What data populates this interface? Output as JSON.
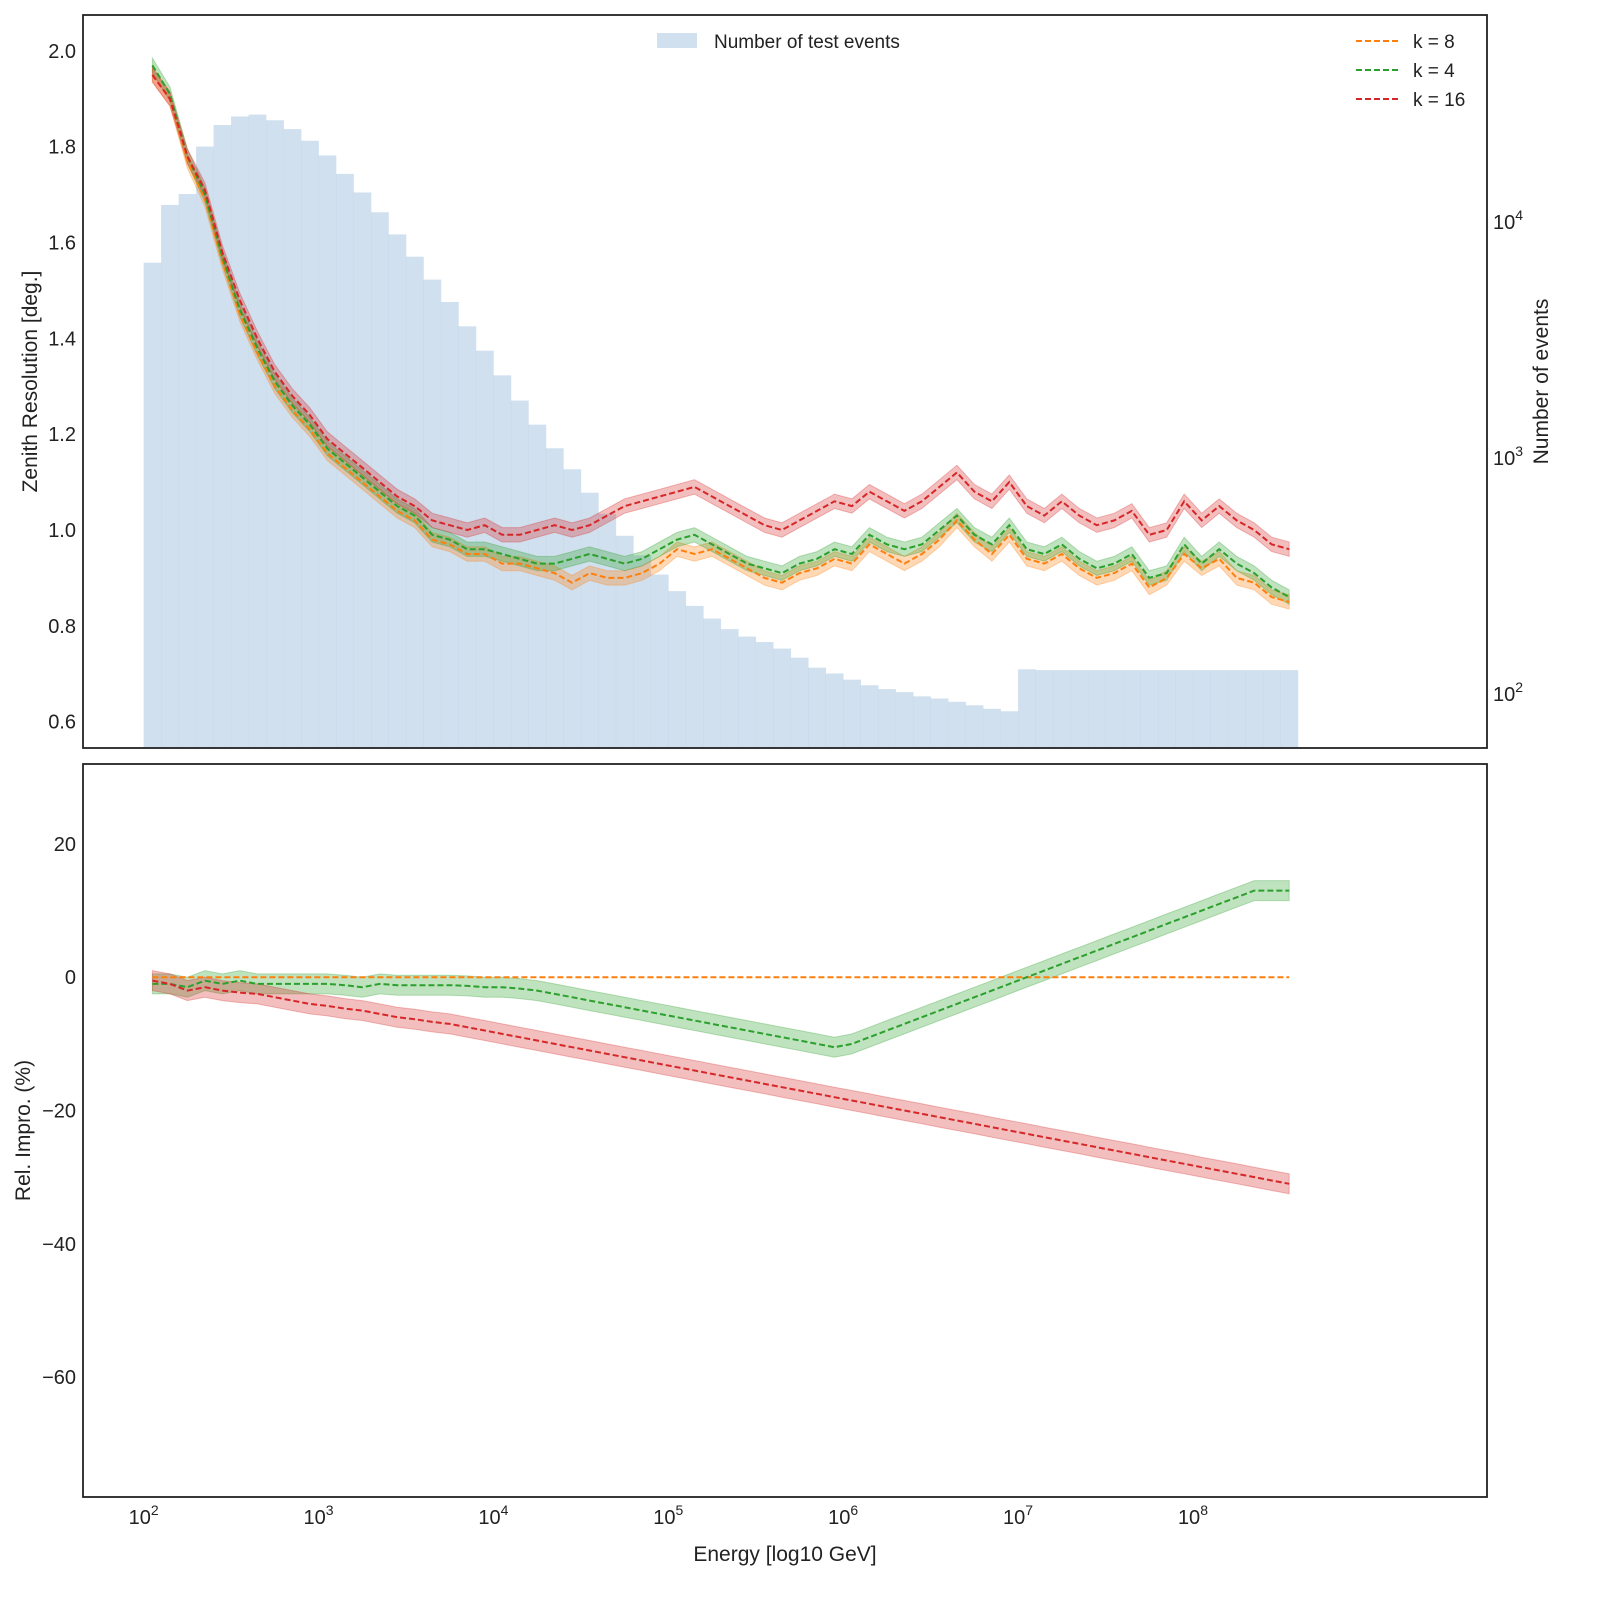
{
  "chart_data": [
    {
      "type": "line",
      "panel": "top",
      "ylabel": "Zenith Resolution [deg.]",
      "ylabel_right": "Number of events",
      "x_scale": "log10",
      "xlim": [
        45,
        4800000000
      ],
      "ylim": [
        0.545,
        2.075
      ],
      "y_ticks": [
        0.6,
        0.8,
        1.0,
        1.2,
        1.4,
        1.6,
        1.8,
        2.0
      ],
      "y_tick_labels": [
        "0.6",
        "0.8",
        "1.0",
        "1.2",
        "1.4",
        "1.6",
        "1.8",
        "2.0"
      ],
      "y2_scale": "log10",
      "y2lim": [
        58,
        74000
      ],
      "y2_tick_labels": [
        {
          "base": "10",
          "exp": "2",
          "value": 100
        },
        {
          "base": "10",
          "exp": "3",
          "value": 1000
        },
        {
          "base": "10",
          "exp": "4",
          "value": 10000
        }
      ],
      "grid": false,
      "legends": {
        "histogram": "top-center",
        "series": "top-right"
      },
      "histogram": {
        "name": "Number of test events",
        "color": "#b7d0e5",
        "log10_energy_bin_edges_start": 2.0,
        "log10_energy_bin_width": 0.1,
        "counts": [
          6600,
          11600,
          12900,
          20500,
          25300,
          27500,
          28000,
          26500,
          24300,
          21700,
          18800,
          15700,
          13100,
          10800,
          8700,
          7000,
          5600,
          4500,
          3550,
          2800,
          2200,
          1720,
          1360,
          1080,
          880,
          700,
          570,
          460,
          380,
          315,
          268,
          232,
          205,
          185,
          172,
          163,
          153,
          140,
          127,
          120,
          113,
          107,
          103,
          100,
          96,
          94,
          91,
          88,
          85,
          83,
          125,
          124,
          124,
          124,
          124,
          124,
          124,
          124,
          124,
          124,
          124,
          124,
          124,
          124,
          124,
          124
        ]
      },
      "x_log10_energy": [
        2.05,
        2.15,
        2.25,
        2.35,
        2.45,
        2.55,
        2.65,
        2.75,
        2.85,
        2.95,
        3.05,
        3.15,
        3.25,
        3.35,
        3.45,
        3.55,
        3.65,
        3.75,
        3.85,
        3.95,
        4.05,
        4.15,
        4.25,
        4.35,
        4.45,
        4.55,
        4.65,
        4.75,
        4.85,
        4.95,
        5.05,
        5.15,
        5.25,
        5.35,
        5.45,
        5.55,
        5.65,
        5.75,
        5.85,
        5.95,
        6.05,
        6.15,
        6.25,
        6.35,
        6.45,
        6.55,
        6.65,
        6.75,
        6.85,
        6.95,
        7.05,
        7.15,
        7.25,
        7.35,
        7.45,
        7.55,
        7.65,
        7.75,
        7.85,
        7.95,
        8.05,
        8.15,
        8.25,
        8.35,
        8.45,
        8.55
      ],
      "series": [
        {
          "name": "k = 8",
          "color": "#ff7f0e",
          "band_halfwidth": 0.015,
          "values": [
            1.95,
            1.9,
            1.77,
            1.69,
            1.56,
            1.45,
            1.37,
            1.3,
            1.25,
            1.21,
            1.16,
            1.13,
            1.1,
            1.07,
            1.04,
            1.02,
            0.98,
            0.97,
            0.95,
            0.95,
            0.93,
            0.93,
            0.92,
            0.91,
            0.89,
            0.91,
            0.9,
            0.9,
            0.91,
            0.93,
            0.96,
            0.95,
            0.96,
            0.94,
            0.92,
            0.9,
            0.89,
            0.91,
            0.92,
            0.94,
            0.93,
            0.97,
            0.95,
            0.93,
            0.95,
            0.98,
            1.02,
            0.98,
            0.95,
            0.99,
            0.94,
            0.93,
            0.95,
            0.92,
            0.9,
            0.91,
            0.93,
            0.88,
            0.9,
            0.95,
            0.92,
            0.94,
            0.9,
            0.89,
            0.86,
            0.85
          ]
        },
        {
          "name": "k = 4",
          "color": "#2ca02c",
          "band_halfwidth": 0.015,
          "values": [
            1.97,
            1.91,
            1.78,
            1.7,
            1.57,
            1.46,
            1.38,
            1.31,
            1.26,
            1.22,
            1.17,
            1.14,
            1.11,
            1.08,
            1.05,
            1.03,
            0.99,
            0.98,
            0.96,
            0.96,
            0.95,
            0.94,
            0.93,
            0.93,
            0.94,
            0.95,
            0.94,
            0.93,
            0.94,
            0.96,
            0.98,
            0.99,
            0.97,
            0.95,
            0.93,
            0.92,
            0.91,
            0.93,
            0.94,
            0.96,
            0.95,
            0.99,
            0.97,
            0.96,
            0.97,
            1.0,
            1.03,
            0.99,
            0.97,
            1.01,
            0.96,
            0.95,
            0.97,
            0.94,
            0.92,
            0.93,
            0.95,
            0.9,
            0.91,
            0.97,
            0.93,
            0.96,
            0.93,
            0.91,
            0.88,
            0.86
          ]
        },
        {
          "name": "k = 16",
          "color": "#d62728",
          "band_halfwidth": 0.015,
          "values": [
            1.95,
            1.9,
            1.78,
            1.71,
            1.58,
            1.48,
            1.4,
            1.33,
            1.28,
            1.24,
            1.19,
            1.16,
            1.13,
            1.1,
            1.07,
            1.05,
            1.02,
            1.01,
            1.0,
            1.01,
            0.99,
            0.99,
            1.0,
            1.01,
            1.0,
            1.01,
            1.03,
            1.05,
            1.06,
            1.07,
            1.08,
            1.09,
            1.07,
            1.05,
            1.03,
            1.01,
            1.0,
            1.02,
            1.04,
            1.06,
            1.05,
            1.08,
            1.06,
            1.04,
            1.06,
            1.09,
            1.12,
            1.08,
            1.06,
            1.1,
            1.05,
            1.03,
            1.06,
            1.03,
            1.01,
            1.02,
            1.04,
            0.99,
            1.0,
            1.06,
            1.02,
            1.05,
            1.02,
            1.0,
            0.97,
            0.96
          ]
        }
      ]
    },
    {
      "type": "line",
      "panel": "bottom",
      "xlabel": "Energy [log10 GeV]",
      "ylabel": "Rel. Impro. (%)",
      "x_scale": "log10",
      "xlim": [
        45,
        4800000000
      ],
      "ylim": [
        -78,
        32
      ],
      "x_tick_labels": [
        {
          "base": "10",
          "exp": "2",
          "value": 100
        },
        {
          "base": "10",
          "exp": "3",
          "value": 1000
        },
        {
          "base": "10",
          "exp": "4",
          "value": 10000
        },
        {
          "base": "10",
          "exp": "5",
          "value": 100000
        },
        {
          "base": "10",
          "exp": "6",
          "value": 1000000
        },
        {
          "base": "10",
          "exp": "7",
          "value": 10000000
        },
        {
          "base": "10",
          "exp": "8",
          "value": 100000000
        }
      ],
      "y_ticks": [
        -60,
        -40,
        -20,
        0,
        20
      ],
      "y_tick_labels": [
        "−60",
        "−40",
        "−20",
        "0",
        "20"
      ],
      "grid": false,
      "x_log10_energy": [
        2.05,
        2.15,
        2.25,
        2.35,
        2.45,
        2.55,
        2.65,
        2.75,
        2.85,
        2.95,
        3.05,
        3.15,
        3.25,
        3.35,
        3.45,
        3.55,
        3.65,
        3.75,
        3.85,
        3.95,
        4.05,
        4.15,
        4.25,
        4.35,
        4.45,
        4.55,
        4.65,
        4.75,
        4.85,
        4.95,
        5.05,
        5.15,
        5.25,
        5.35,
        5.45,
        5.55,
        5.65,
        5.75,
        5.85,
        5.95,
        6.05,
        6.15,
        6.25,
        6.35,
        6.45,
        6.55,
        6.65,
        6.75,
        6.85,
        6.95,
        7.05,
        7.15,
        7.25,
        7.35,
        7.45,
        7.55,
        7.65,
        7.75,
        7.85,
        7.95,
        8.05,
        8.15,
        8.25,
        8.35,
        8.45,
        8.55
      ],
      "series": [
        {
          "name": "k = 8",
          "color": "#ff7f0e",
          "band_halfwidth": 0,
          "values": [
            0,
            0,
            0,
            0,
            0,
            0,
            0,
            0,
            0,
            0,
            0,
            0,
            0,
            0,
            0,
            0,
            0,
            0,
            0,
            0,
            0,
            0,
            0,
            0,
            0,
            0,
            0,
            0,
            0,
            0,
            0,
            0,
            0,
            0,
            0,
            0,
            0,
            0,
            0,
            0,
            0,
            0,
            0,
            0,
            0,
            0,
            0,
            0,
            0,
            0,
            0,
            0,
            0,
            0,
            0,
            0,
            0,
            0,
            0,
            0,
            0,
            0,
            0,
            0,
            0,
            0
          ]
        },
        {
          "name": "k = 4",
          "color": "#2ca02c",
          "band_halfwidth": 1.5,
          "values": [
            -1,
            -1,
            -1.5,
            -0.5,
            -1,
            -0.5,
            -1,
            -1,
            -1,
            -1,
            -1,
            -1.2,
            -1.5,
            -1,
            -1.2,
            -1.2,
            -1.2,
            -1.2,
            -1.3,
            -1.5,
            -1.5,
            -1.7,
            -2,
            -2.5,
            -3,
            -3.5,
            -4,
            -4.5,
            -5,
            -5.5,
            -6,
            -6.5,
            -7,
            -7.5,
            -8,
            -8.5,
            -9,
            -9.5,
            -10,
            -10.5,
            -10,
            -9,
            -8,
            -7,
            -6,
            -5,
            -4,
            -3,
            -2,
            -1,
            0,
            1,
            2,
            3,
            4,
            5,
            6,
            7,
            8,
            9,
            10,
            11,
            12,
            13,
            13,
            13
          ]
        },
        {
          "name": "k = 16",
          "color": "#d62728",
          "band_halfwidth": 1.5,
          "values": [
            -0.5,
            -1,
            -2,
            -1.5,
            -2,
            -2.3,
            -2.5,
            -3,
            -3.5,
            -4,
            -4.3,
            -4.7,
            -5,
            -5.5,
            -6,
            -6.3,
            -6.7,
            -7,
            -7.5,
            -8,
            -8.5,
            -9,
            -9.5,
            -10,
            -10.5,
            -11,
            -11.5,
            -12,
            -12.5,
            -13,
            -13.5,
            -14,
            -14.5,
            -15,
            -15.5,
            -16,
            -16.5,
            -17,
            -17.5,
            -18,
            -18.5,
            -19,
            -19.5,
            -20,
            -20.5,
            -21,
            -21.5,
            -22,
            -22.5,
            -23,
            -23.5,
            -24,
            -24.5,
            -25,
            -25.5,
            -26,
            -26.5,
            -27,
            -27.5,
            -28,
            -28.5,
            -29,
            -29.5,
            -30,
            -30.5,
            -31
          ]
        }
      ]
    }
  ]
}
